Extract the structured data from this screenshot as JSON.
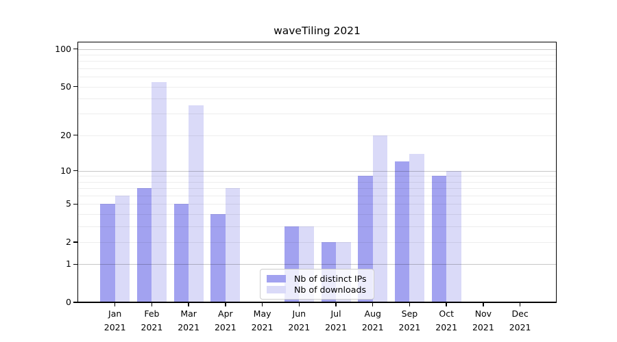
{
  "chart_data": {
    "type": "bar",
    "title": "waveTiling 2021",
    "categories": [
      "Jan",
      "Feb",
      "Mar",
      "Apr",
      "May",
      "Jun",
      "Jul",
      "Aug",
      "Sep",
      "Oct",
      "Nov",
      "Dec"
    ],
    "year_label": "2021",
    "series": [
      {
        "name": "Nb of distinct IPs",
        "color": "#a2a2f0",
        "values": [
          5,
          7,
          5,
          4,
          0,
          3,
          2,
          9,
          12,
          9,
          0,
          0
        ]
      },
      {
        "name": "Nb of downloads",
        "color": "#dadaf8",
        "values": [
          6,
          54,
          35,
          7,
          0,
          3,
          2,
          20,
          14,
          10,
          0,
          0
        ]
      }
    ],
    "y_axis": {
      "scale": "log1p",
      "tick_labels": [
        "0",
        "1",
        "2",
        "5",
        "10",
        "20",
        "50",
        "100"
      ],
      "tick_values": [
        0,
        1,
        2,
        5,
        10,
        20,
        50,
        100
      ],
      "major_gridlines": [
        1,
        10,
        100
      ],
      "minor_gridlines": [
        2,
        3,
        4,
        5,
        6,
        7,
        8,
        9,
        20,
        30,
        40,
        50,
        60,
        70,
        80,
        90
      ],
      "ylim": [
        0,
        113
      ]
    },
    "legend_position": "bottom-center",
    "colors": {
      "major_grid": "rgba(0,0,0,0.22)",
      "minor_grid": "rgba(0,0,0,0.07)",
      "axis": "#000000",
      "text": "#000000"
    }
  }
}
